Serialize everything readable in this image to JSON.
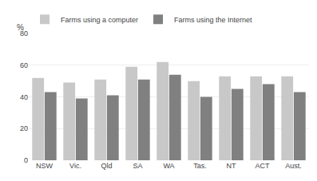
{
  "chart_data": {
    "type": "bar",
    "categories": [
      "NSW",
      "Vic.",
      "Qld",
      "SA",
      "WA",
      "Tas.",
      "NT",
      "ACT",
      "Aust."
    ],
    "series": [
      {
        "name": "Farms using a computer",
        "color": "#c8c8c8",
        "values": [
          52,
          49,
          51,
          59,
          62,
          50,
          53,
          53,
          53
        ]
      },
      {
        "name": "Farms using the Internet",
        "color": "#808080",
        "values": [
          43,
          39,
          41,
          51,
          54,
          40,
          45,
          48,
          43
        ]
      }
    ],
    "ylabel": "%",
    "ylim": [
      0,
      80
    ],
    "yticks": [
      0,
      20,
      40,
      60,
      80
    ],
    "grid": true,
    "legend": "upper left"
  }
}
